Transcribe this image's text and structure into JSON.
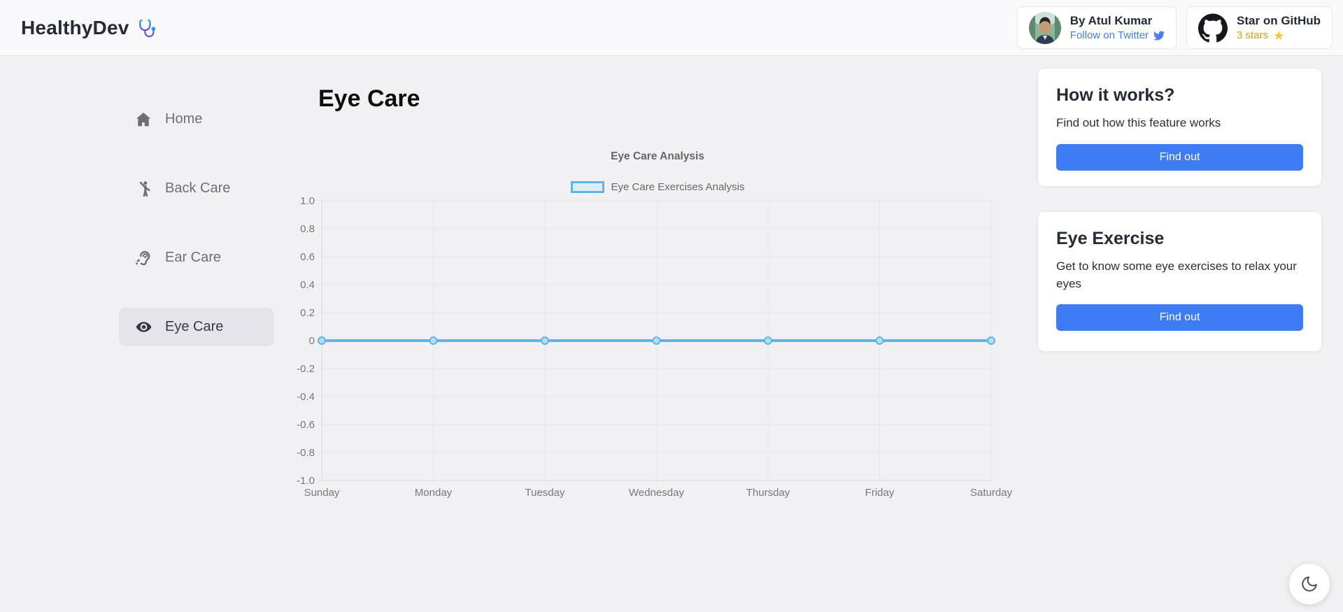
{
  "navbar": {
    "brand": "HealthyDev",
    "author_card": {
      "name": "By Atul Kumar",
      "link": "Follow on Twitter"
    },
    "github_card": {
      "title": "Star on GitHub",
      "stars": "3 stars"
    }
  },
  "sidebar": {
    "items": [
      {
        "label": "Home",
        "icon": "home-icon",
        "active": false
      },
      {
        "label": "Back Care",
        "icon": "back-care-icon",
        "active": false
      },
      {
        "label": "Ear Care",
        "icon": "ear-care-icon",
        "active": false
      },
      {
        "label": "Eye Care",
        "icon": "eye-care-icon",
        "active": true
      }
    ]
  },
  "main": {
    "title": "Eye Care"
  },
  "chart_data": {
    "type": "line",
    "title": "Eye Care Analysis",
    "legend": "Eye Care Exercises Analysis",
    "legend_position": "top",
    "categories": [
      "Sunday",
      "Monday",
      "Tuesday",
      "Wednesday",
      "Thursday",
      "Friday",
      "Saturday"
    ],
    "values": [
      0,
      0,
      0,
      0,
      0,
      0,
      0
    ],
    "ylim": [
      -1.0,
      1.0
    ],
    "ytick_step": 0.2,
    "ytick_labels": [
      "1.0",
      "0.8",
      "0.6",
      "0.4",
      "0.2",
      "0",
      "-0.2",
      "-0.4",
      "-0.6",
      "-0.8",
      "-1.0"
    ],
    "grid": true,
    "line_color": "#5eb6e8",
    "point_fill": "#b5dcf4",
    "legend_fill": "#dcedfa"
  },
  "right_panel": {
    "cards": [
      {
        "title": "How it works?",
        "text": "Find out how this feature works",
        "button": "Find out"
      },
      {
        "title": "Eye Exercise",
        "text": "Get to know some eye exercises to relax your eyes",
        "button": "Find out"
      }
    ]
  },
  "colors": {
    "accent": "#3e7cf5",
    "twitter_link": "#4b7df6",
    "stars_text": "#d99e10",
    "star_icon": "#f6c62d",
    "grid_line": "#e6e7e9",
    "axis_line": "#d8d9db",
    "tick_text": "#74787d"
  }
}
